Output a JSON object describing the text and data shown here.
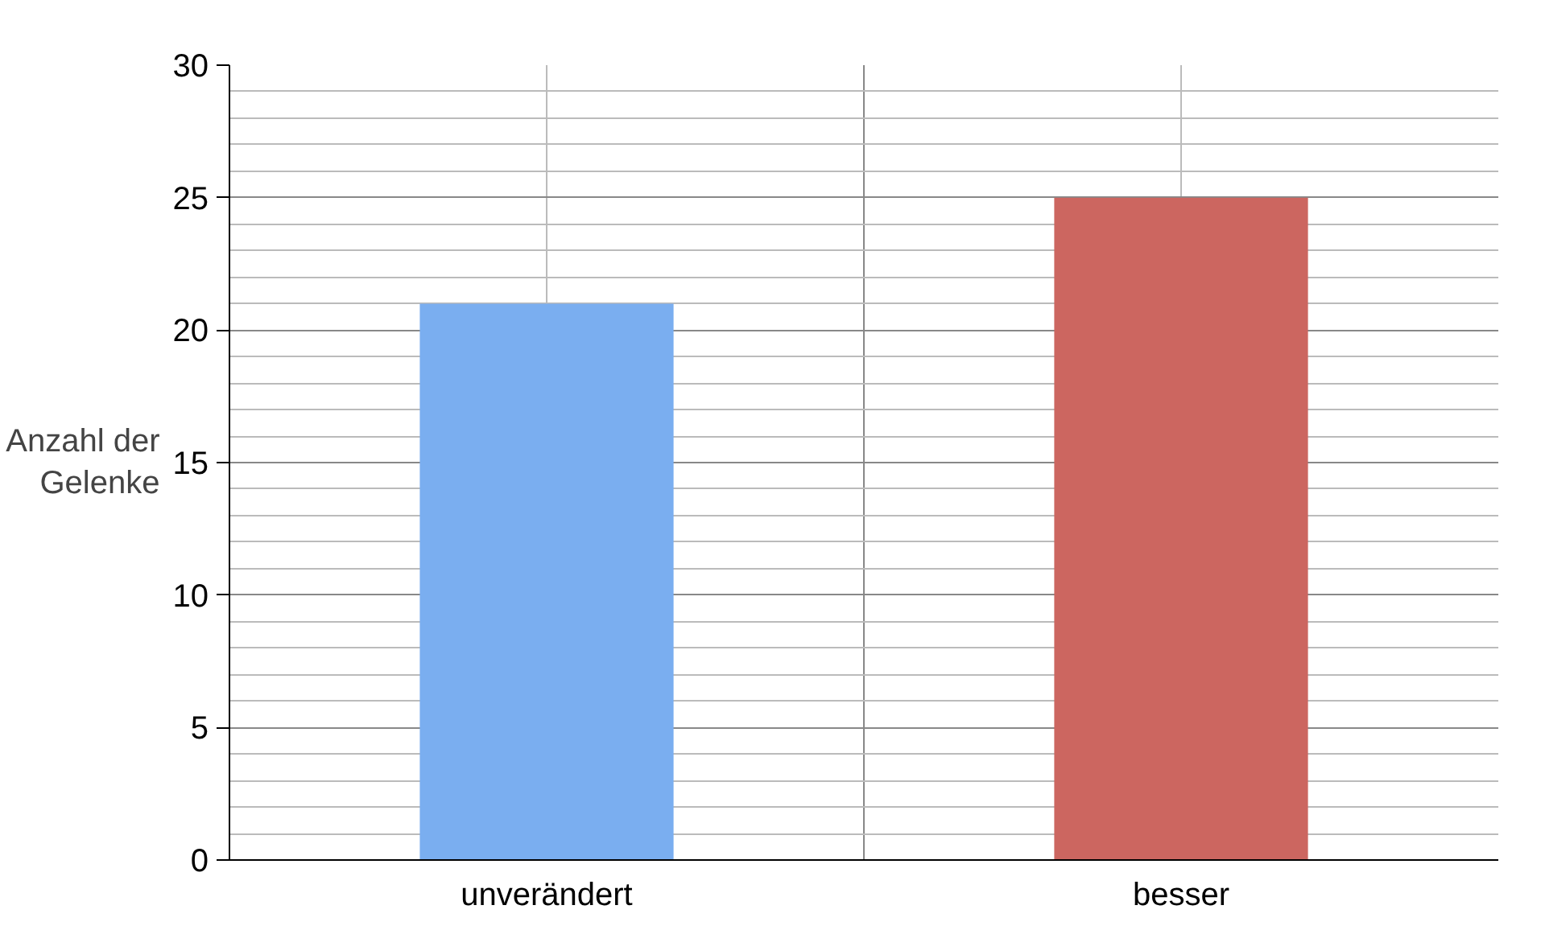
{
  "chart_data": {
    "type": "bar",
    "ylabel": "Anzahl der Gelenke",
    "categories": [
      "unverändert",
      "besser"
    ],
    "values": [
      21,
      25
    ],
    "colors": [
      "#7aaef0",
      "#cc6660"
    ],
    "ylim": [
      0,
      30
    ],
    "yticks": [
      0,
      5,
      10,
      15,
      20,
      25,
      30
    ],
    "grid": true
  }
}
